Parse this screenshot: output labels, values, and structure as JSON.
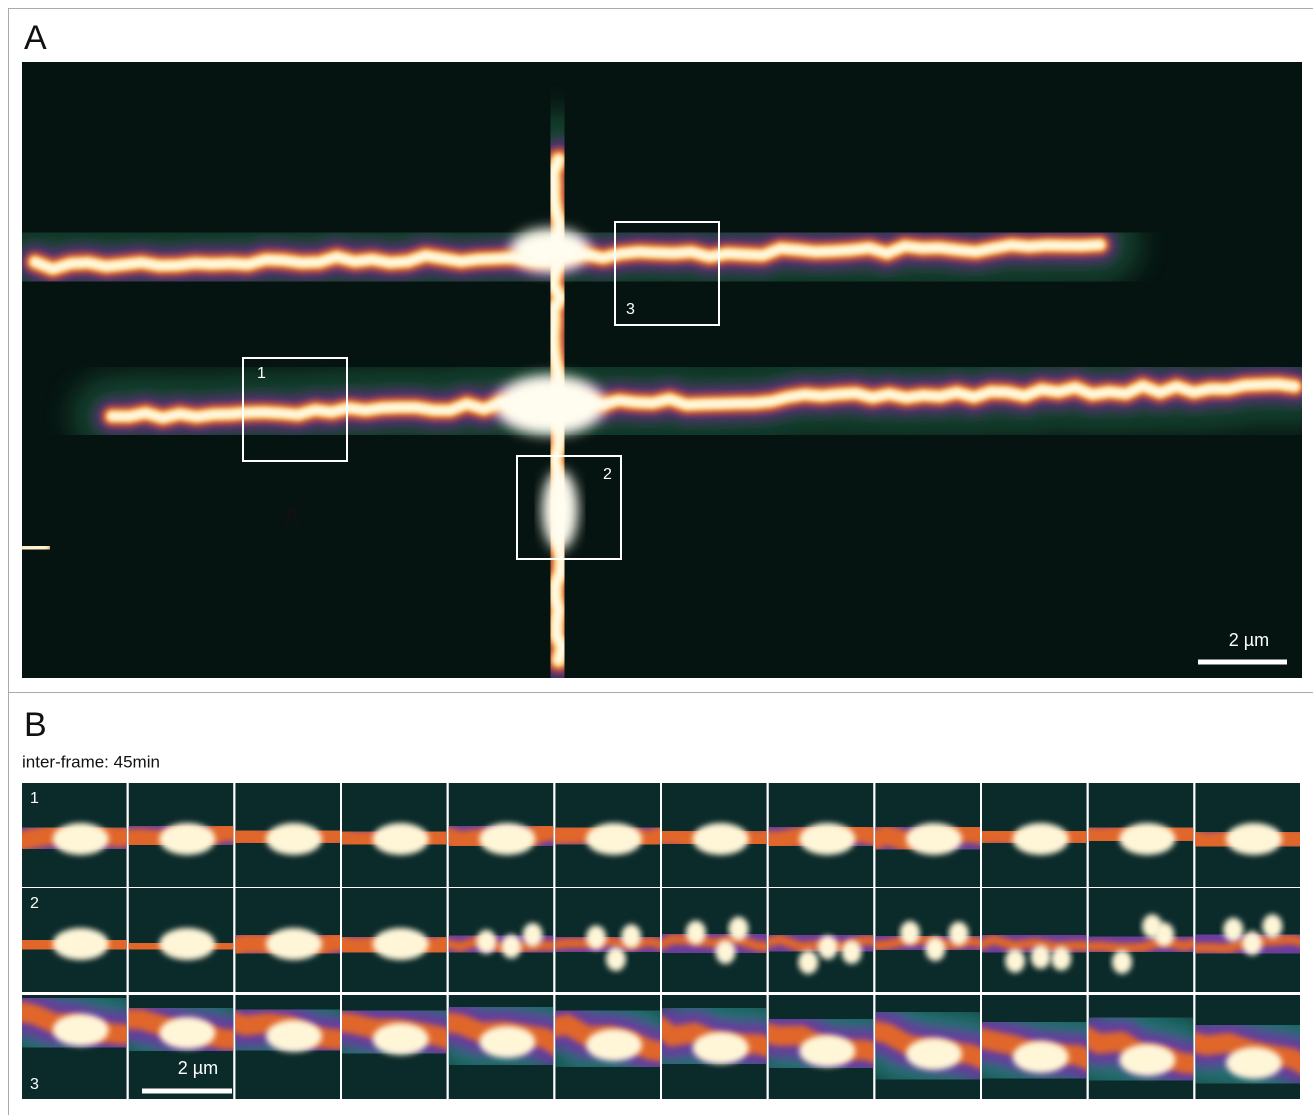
{
  "panel_a": {
    "label": "A",
    "scale_bar": "2 µm",
    "boxes": [
      "1",
      "2",
      "3"
    ],
    "image_annotation": "A"
  },
  "panel_b": {
    "label": "B",
    "subtitle": "inter-frame: 45min",
    "rows": [
      "1",
      "2",
      "3"
    ],
    "scale_bar": "2 µm"
  }
}
